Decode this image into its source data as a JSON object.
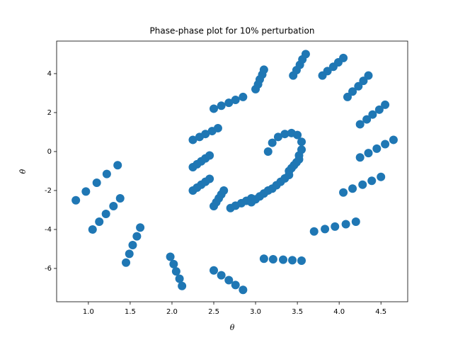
{
  "chart_data": {
    "type": "scatter",
    "title": "Phase-phase plot for 10% perturbation",
    "x_label": "θ",
    "y_label": "θ̇",
    "color": "#1f77b4",
    "xlim": [
      0.62,
      4.82
    ],
    "ylim": [
      -7.71,
      5.67
    ],
    "xticks": [
      {
        "value": 1,
        "label": "1.0"
      },
      {
        "value": 1.5,
        "label": "1.5"
      },
      {
        "value": 2,
        "label": "2.0"
      },
      {
        "value": 2.5,
        "label": "2.5"
      },
      {
        "value": 3,
        "label": "3.0"
      },
      {
        "value": 3.5,
        "label": "3.5"
      },
      {
        "value": 4,
        "label": "4.0"
      },
      {
        "value": 4.5,
        "label": "4.5"
      }
    ],
    "yticks": [
      -6,
      -4,
      -2,
      0,
      2,
      4
    ],
    "x": [
      0.85,
      0.97,
      1.1,
      1.22,
      1.35,
      1.05,
      1.13,
      1.21,
      1.3,
      1.38,
      1.45,
      1.49,
      1.53,
      1.58,
      1.62,
      1.98,
      2.02,
      2.05,
      2.09,
      2.12,
      2.5,
      2.59,
      2.68,
      2.76,
      2.85,
      3.1,
      3.21,
      3.33,
      3.44,
      3.55,
      3.7,
      3.83,
      3.95,
      4.08,
      4.2,
      4.05,
      4.16,
      4.28,
      4.39,
      4.5,
      4.25,
      4.35,
      4.45,
      4.55,
      4.65,
      4.25,
      4.33,
      4.4,
      4.48,
      4.55,
      4.1,
      4.16,
      4.23,
      4.29,
      4.35,
      3.8,
      3.86,
      3.93,
      3.99,
      4.05,
      3.45,
      3.49,
      3.53,
      3.56,
      3.6,
      3.0,
      3.03,
      3.05,
      3.08,
      3.1,
      2.5,
      2.59,
      2.68,
      2.76,
      2.85,
      2.25,
      2.33,
      2.4,
      2.48,
      2.55,
      2.25,
      2.3,
      2.35,
      2.4,
      2.45,
      2.25,
      2.3,
      2.35,
      2.4,
      2.45,
      2.5,
      2.53,
      2.56,
      2.59,
      2.62,
      2.7,
      2.76,
      2.83,
      2.89,
      2.95,
      2.95,
      3.0,
      3.05,
      3.1,
      3.15,
      3.2,
      3.25,
      3.3,
      3.35,
      3.4,
      3.4,
      3.43,
      3.46,
      3.49,
      3.52,
      3.15,
      3.2,
      3.27,
      3.35,
      3.43,
      3.5,
      3.55,
      3.55,
      3.52
    ],
    "y": [
      -2.5,
      -2.05,
      -1.6,
      -1.15,
      -0.7,
      -4,
      -3.6,
      -3.2,
      -2.8,
      -2.4,
      -5.7,
      -5.25,
      -4.8,
      -4.35,
      -3.9,
      -5.4,
      -5.78,
      -6.15,
      -6.53,
      -6.9,
      -6.1,
      -6.35,
      -6.6,
      -6.85,
      -7.1,
      -5.5,
      -5.53,
      -5.55,
      -5.58,
      -5.6,
      -4.1,
      -3.98,
      -3.85,
      -3.73,
      -3.6,
      -2.1,
      -1.9,
      -1.7,
      -1.5,
      -1.3,
      -0.3,
      -0.08,
      0.15,
      0.38,
      0.6,
      1.4,
      1.65,
      1.9,
      2.15,
      2.4,
      2.8,
      3.08,
      3.35,
      3.63,
      3.9,
      3.9,
      4.13,
      4.35,
      4.58,
      4.8,
      3.9,
      4.18,
      4.45,
      4.73,
      5.0,
      3.2,
      3.45,
      3.7,
      3.95,
      4.2,
      2.2,
      2.35,
      2.5,
      2.65,
      2.8,
      0.6,
      0.75,
      0.9,
      1.05,
      1.2,
      -0.8,
      -0.65,
      -0.5,
      -0.35,
      -0.2,
      -2.0,
      -1.85,
      -1.7,
      -1.55,
      -1.4,
      -2.8,
      -2.6,
      -2.4,
      -2.2,
      -2.0,
      -2.9,
      -2.78,
      -2.65,
      -2.53,
      -2.4,
      -2.6,
      -2.45,
      -2.3,
      -2.15,
      -2.0,
      -1.9,
      -1.73,
      -1.55,
      -1.38,
      -1.2,
      -1.0,
      -0.85,
      -0.7,
      -0.55,
      -0.4,
      0,
      0.45,
      0.75,
      0.9,
      0.95,
      0.85,
      0.5,
      0.1,
      -0.2
    ]
  }
}
